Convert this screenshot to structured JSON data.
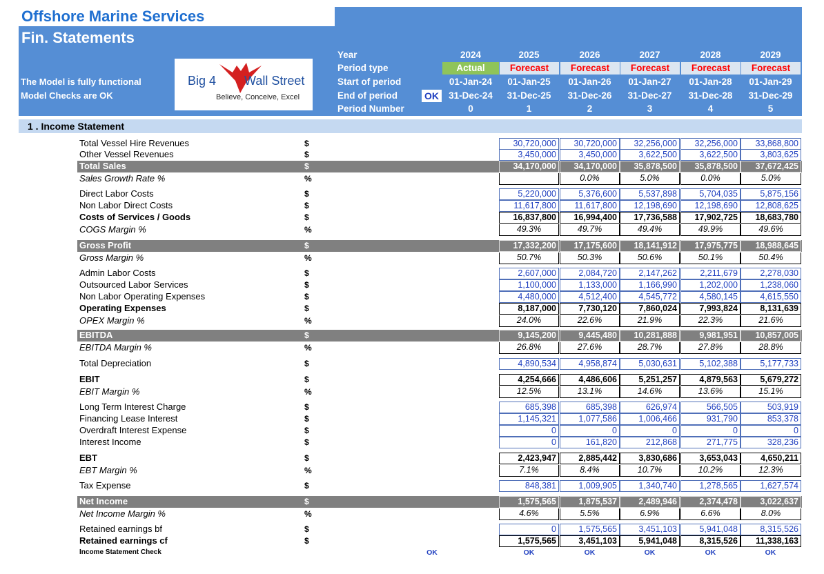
{
  "header": {
    "title": "Offshore Marine Services",
    "subtitle": "Fin. Statements",
    "status": [
      "The Model is fully functional",
      "Model Checks are OK"
    ],
    "logo": {
      "left": "Big 4",
      "right": "Wall Street",
      "tagline": "Believe, Conceive, Excel"
    },
    "periods": {
      "rows": [
        {
          "label": "Year",
          "values": [
            "2024",
            "2025",
            "2026",
            "2027",
            "2028",
            "2029"
          ]
        },
        {
          "label": "Period type",
          "values": [
            "Actual",
            "Forecast",
            "Forecast",
            "Forecast",
            "Forecast",
            "Forecast"
          ]
        },
        {
          "label": "Start of period",
          "values": [
            "01-Jan-24",
            "01-Jan-25",
            "01-Jan-26",
            "01-Jan-27",
            "01-Jan-28",
            "01-Jan-29"
          ]
        },
        {
          "label": "End of period",
          "values": [
            "31-Dec-24",
            "31-Dec-25",
            "31-Dec-26",
            "31-Dec-27",
            "31-Dec-28",
            "31-Dec-29"
          ]
        },
        {
          "label": "Period Number",
          "values": [
            "0",
            "1",
            "2",
            "3",
            "4",
            "5"
          ]
        }
      ],
      "end_check": "OK"
    }
  },
  "section": "1 . Income Statement",
  "table": {
    "rows": [
      {
        "label": "Total Vessel Hire Revenues",
        "unit": "$",
        "values": [
          "30,720,000",
          "30,720,000",
          "32,256,000",
          "32,256,000",
          "33,868,800"
        ]
      },
      {
        "label": "Other Vessel Revenues",
        "unit": "$",
        "values": [
          "3,450,000",
          "3,450,000",
          "3,622,500",
          "3,622,500",
          "3,803,625"
        ]
      },
      {
        "label": "Total Sales",
        "unit": "$",
        "values": [
          "34,170,000",
          "34,170,000",
          "35,878,500",
          "35,878,500",
          "37,672,425"
        ]
      },
      {
        "label": "Sales Growth Rate %",
        "unit": "%",
        "values": [
          null,
          "0.0%",
          "5.0%",
          "0.0%",
          "5.0%"
        ]
      },
      {
        "label": "Direct Labor Costs",
        "unit": "$",
        "values": [
          "5,220,000",
          "5,376,600",
          "5,537,898",
          "5,704,035",
          "5,875,156"
        ]
      },
      {
        "label": "Non Labor Direct Costs",
        "unit": "$",
        "values": [
          "11,617,800",
          "11,617,800",
          "12,198,690",
          "12,198,690",
          "12,808,625"
        ]
      },
      {
        "label": "Costs of Services / Goods",
        "unit": "$",
        "values": [
          "16,837,800",
          "16,994,400",
          "17,736,588",
          "17,902,725",
          "18,683,780"
        ]
      },
      {
        "label": "COGS Margin %",
        "unit": "%",
        "values": [
          "49.3%",
          "49.7%",
          "49.4%",
          "49.9%",
          "49.6%"
        ]
      },
      {
        "label": "Gross Profit",
        "unit": "$",
        "values": [
          "17,332,200",
          "17,175,600",
          "18,141,912",
          "17,975,775",
          "18,988,645"
        ]
      },
      {
        "label": "Gross Margin %",
        "unit": "%",
        "values": [
          "50.7%",
          "50.3%",
          "50.6%",
          "50.1%",
          "50.4%"
        ]
      },
      {
        "label": "Admin Labor Costs",
        "unit": "$",
        "values": [
          "2,607,000",
          "2,084,720",
          "2,147,262",
          "2,211,679",
          "2,278,030"
        ]
      },
      {
        "label": "Outsourced Labor Services",
        "unit": "$",
        "values": [
          "1,100,000",
          "1,133,000",
          "1,166,990",
          "1,202,000",
          "1,238,060"
        ]
      },
      {
        "label": "Non Labor Operating Expenses",
        "unit": "$",
        "values": [
          "4,480,000",
          "4,512,400",
          "4,545,772",
          "4,580,145",
          "4,615,550"
        ]
      },
      {
        "label": "Operating Expenses",
        "unit": "$",
        "values": [
          "8,187,000",
          "7,730,120",
          "7,860,024",
          "7,993,824",
          "8,131,639"
        ]
      },
      {
        "label": "OPEX Margin %",
        "unit": "%",
        "values": [
          "24.0%",
          "22.6%",
          "21.9%",
          "22.3%",
          "21.6%"
        ]
      },
      {
        "label": "EBITDA",
        "unit": "$",
        "values": [
          "9,145,200",
          "9,445,480",
          "10,281,888",
          "9,981,951",
          "10,857,005"
        ]
      },
      {
        "label": "EBITDA Margin %",
        "unit": "%",
        "values": [
          "26.8%",
          "27.6%",
          "28.7%",
          "27.8%",
          "28.8%"
        ]
      },
      {
        "label": "Total Depreciation",
        "unit": "$",
        "values": [
          "4,890,534",
          "4,958,874",
          "5,030,631",
          "5,102,388",
          "5,177,733"
        ]
      },
      {
        "label": "EBIT",
        "unit": "$",
        "values": [
          "4,254,666",
          "4,486,606",
          "5,251,257",
          "4,879,563",
          "5,679,272"
        ]
      },
      {
        "label": "EBIT Margin %",
        "unit": "%",
        "values": [
          "12.5%",
          "13.1%",
          "14.6%",
          "13.6%",
          "15.1%"
        ]
      },
      {
        "label": "Long Term Interest Charge",
        "unit": "$",
        "values": [
          "685,398",
          "685,398",
          "626,974",
          "566,505",
          "503,919"
        ]
      },
      {
        "label": "Financing Lease Interest",
        "unit": "$",
        "values": [
          "1,145,321",
          "1,077,586",
          "1,006,466",
          "931,790",
          "853,378"
        ]
      },
      {
        "label": "Overdraft Interest Expense",
        "unit": "$",
        "values": [
          "0",
          "0",
          "0",
          "0",
          "0"
        ]
      },
      {
        "label": "Interest Income",
        "unit": "$",
        "values": [
          "0",
          "161,820",
          "212,868",
          "271,775",
          "328,236"
        ]
      },
      {
        "label": "EBT",
        "unit": "$",
        "values": [
          "2,423,947",
          "2,885,442",
          "3,830,686",
          "3,653,043",
          "4,650,211"
        ]
      },
      {
        "label": "EBT Margin %",
        "unit": "%",
        "values": [
          "7.1%",
          "8.4%",
          "10.7%",
          "10.2%",
          "12.3%"
        ]
      },
      {
        "label": "Tax Expense",
        "unit": "$",
        "values": [
          "848,381",
          "1,009,905",
          "1,340,740",
          "1,278,565",
          "1,627,574"
        ]
      },
      {
        "label": "Net Income",
        "unit": "$",
        "values": [
          "1,575,565",
          "1,875,537",
          "2,489,946",
          "2,374,478",
          "3,022,637"
        ]
      },
      {
        "label": "Net Income Margin %",
        "unit": "%",
        "values": [
          "4.6%",
          "5.5%",
          "6.9%",
          "6.6%",
          "8.0%"
        ]
      },
      {
        "label": "Retained earnings bf",
        "unit": "$",
        "values": [
          "0",
          "1,575,565",
          "3,451,103",
          "5,941,048",
          "8,315,526"
        ]
      },
      {
        "label": "Retained earnings cf",
        "unit": "$",
        "values": [
          "1,575,565",
          "3,451,103",
          "5,941,048",
          "8,315,526",
          "11,338,163"
        ]
      }
    ],
    "check": {
      "label": "Income Statement Check",
      "total": "OK",
      "values": [
        "OK",
        "OK",
        "OK",
        "OK",
        "OK"
      ]
    }
  }
}
